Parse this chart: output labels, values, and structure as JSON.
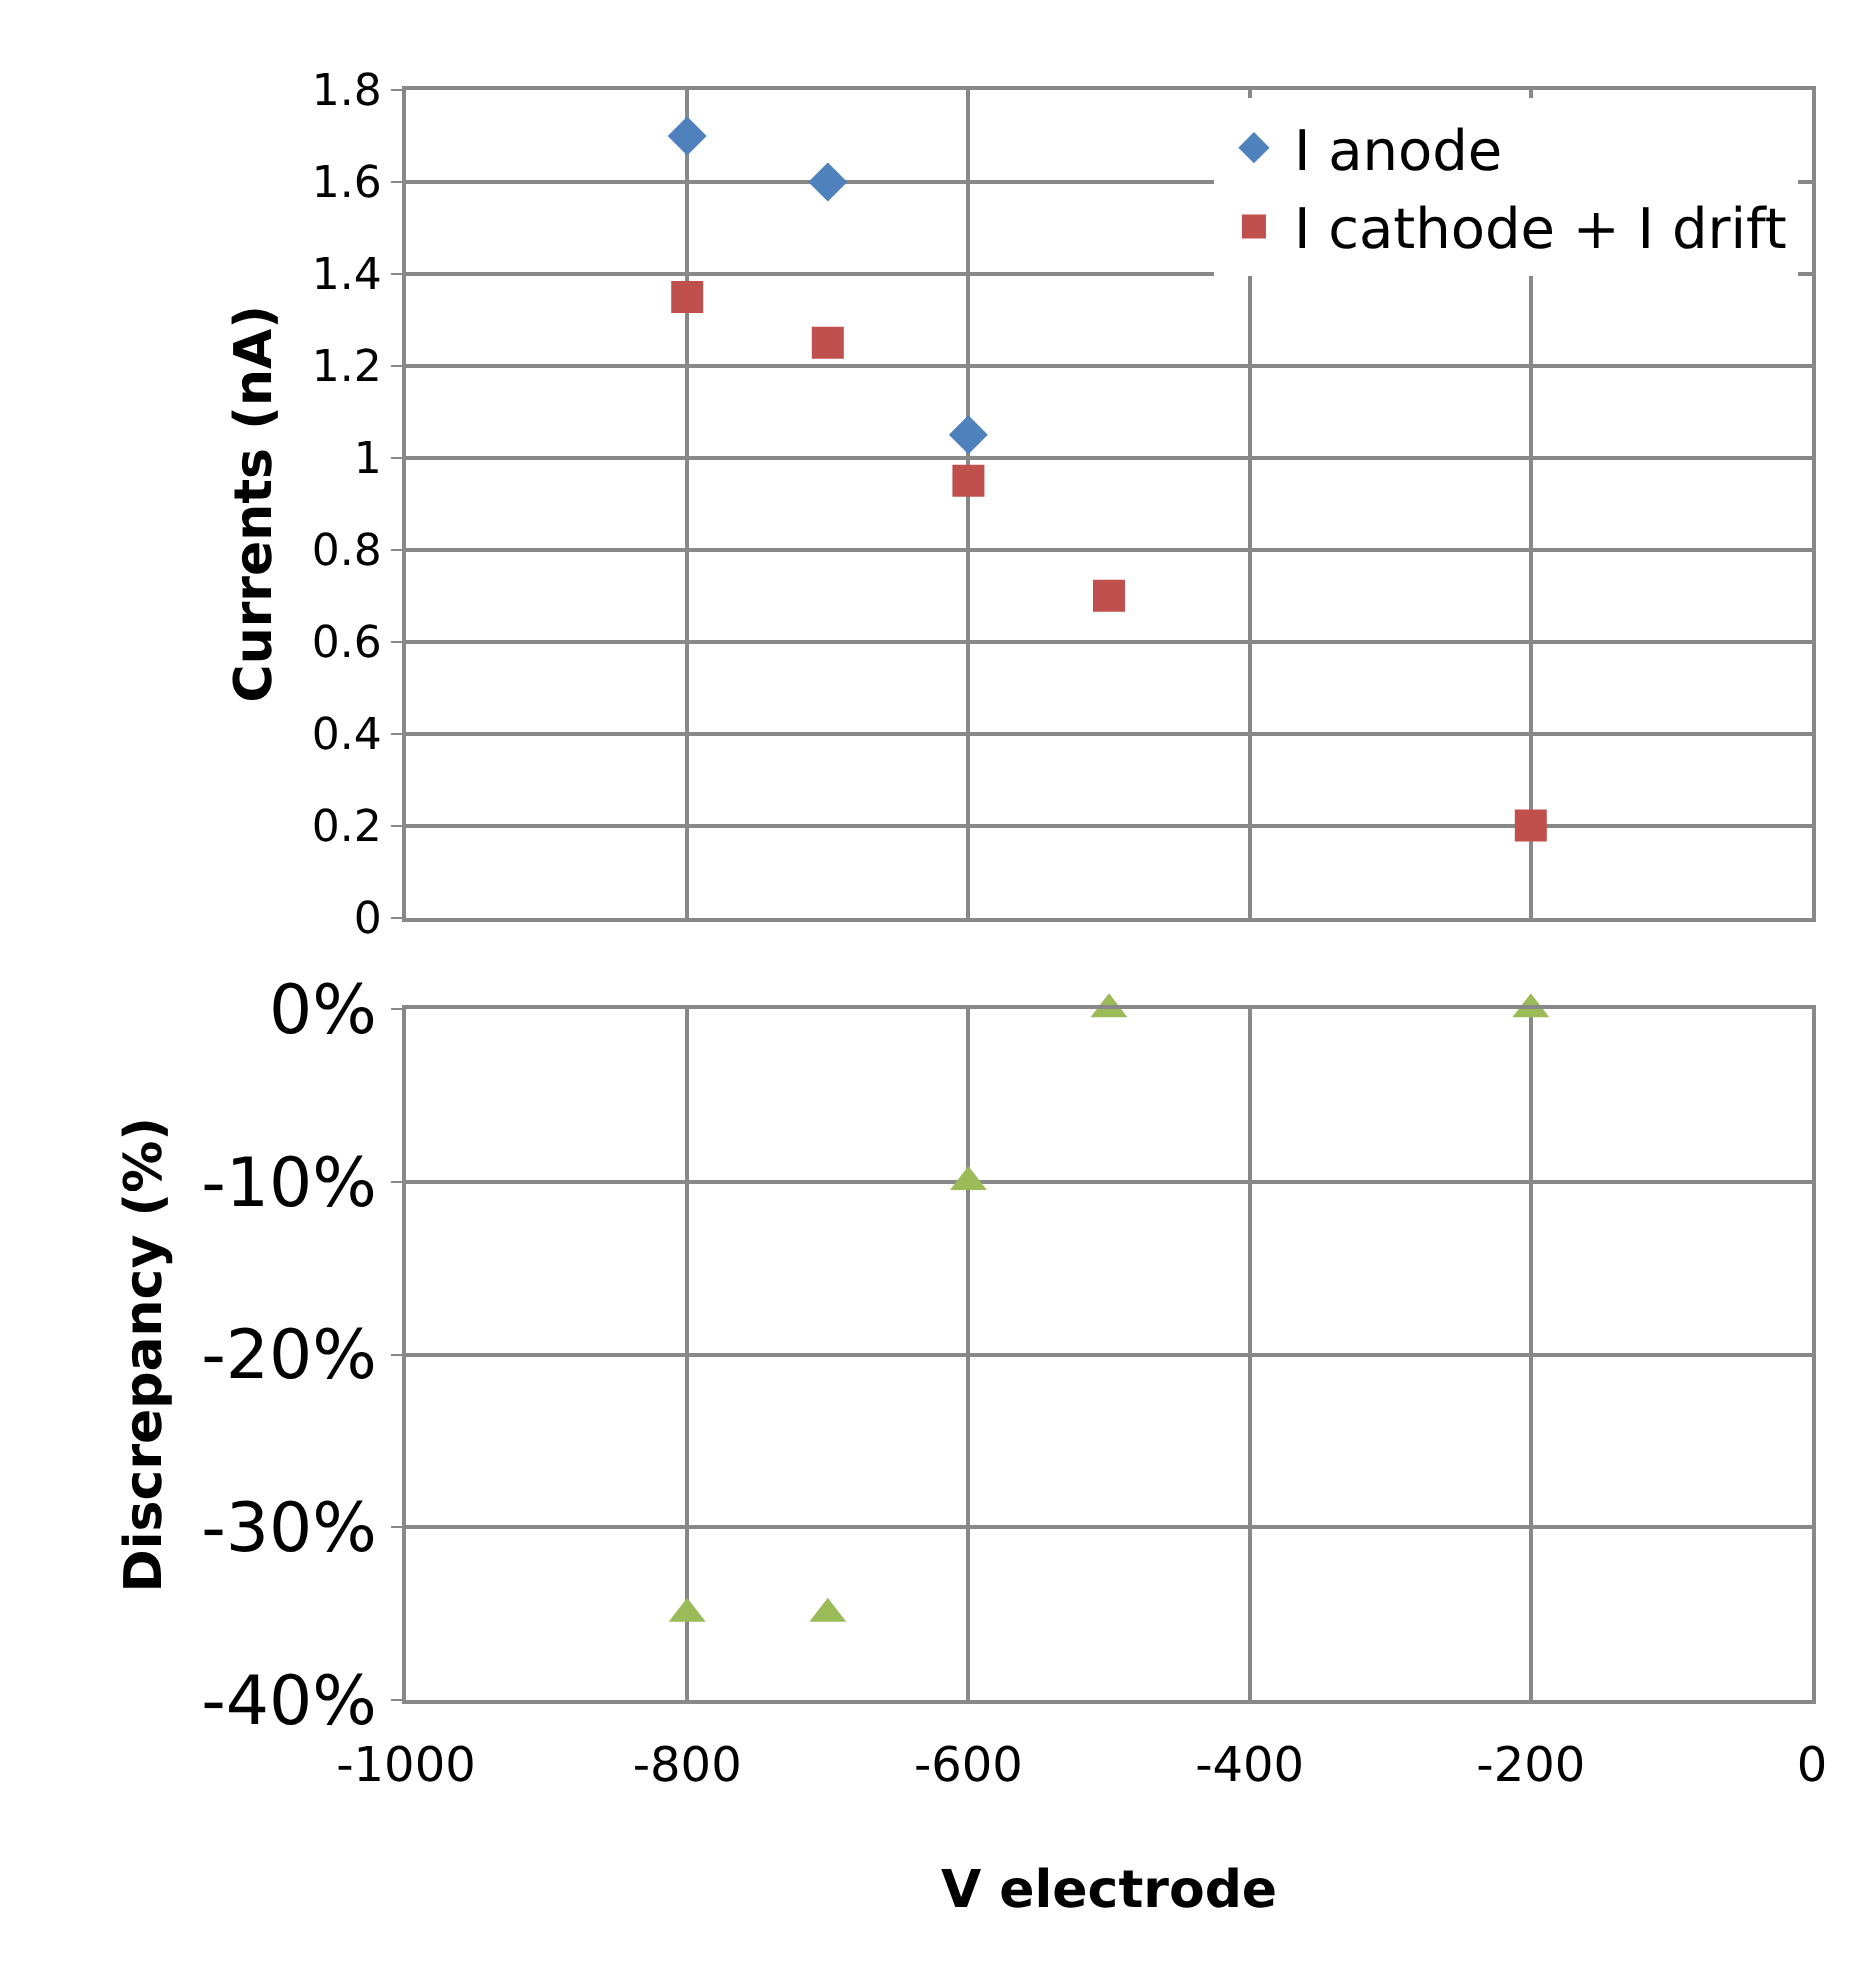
{
  "chart_data": [
    {
      "type": "scatter",
      "ylabel": "Currents (nA)",
      "x": [
        -800,
        -700,
        -600,
        -500,
        -200
      ],
      "xlim": [
        -1000,
        0
      ],
      "xticks": [
        -1000,
        -800,
        -600,
        -400,
        -200,
        0
      ],
      "ylim": [
        0,
        1.8
      ],
      "yticks": [
        0,
        0.2,
        0.4,
        0.6,
        0.8,
        1,
        1.2,
        1.4,
        1.6,
        1.8
      ],
      "grid": true,
      "legend": "top right",
      "tick_labels": "y",
      "series": [
        {
          "name": "I anode",
          "color": "#4f81bd",
          "marker": "diamond",
          "values": [
            1.7,
            1.6,
            1.05,
            null,
            null
          ]
        },
        {
          "name": "I cathode + I drift",
          "color": "#c0504d",
          "marker": "square",
          "values": [
            1.35,
            1.25,
            0.95,
            0.7,
            0.2
          ]
        }
      ]
    },
    {
      "type": "scatter",
      "xlabel": "V electrode",
      "ylabel": "Discrepancy (%)",
      "x": [
        -800,
        -700,
        -600,
        -500,
        -200
      ],
      "xlim": [
        -1000,
        0
      ],
      "xticks": [
        -1000,
        -800,
        -600,
        -400,
        -200,
        0
      ],
      "ylim": [
        -40,
        0
      ],
      "yticks": [
        {
          "value": -40,
          "label": "-40%"
        },
        {
          "value": -30,
          "label": "-30%"
        },
        {
          "value": -20,
          "label": "-20%"
        },
        {
          "value": -10,
          "label": "-10%"
        },
        {
          "value": 0,
          "label": "0%"
        }
      ],
      "grid": true,
      "legend": false,
      "series": [
        {
          "color": "#9bbb59",
          "marker": "triangle",
          "values": [
            -35,
            -35,
            -10,
            0,
            0
          ]
        }
      ]
    }
  ]
}
